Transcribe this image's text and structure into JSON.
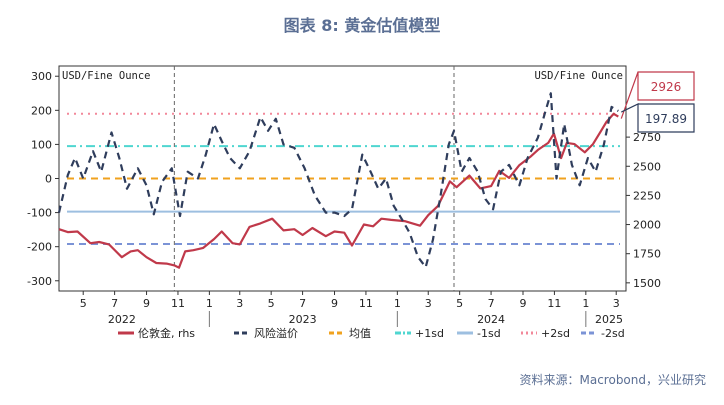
{
  "figure": {
    "title": "图表 8:   黄金估值模型",
    "source": "资料来源：Macrobond，兴业研究"
  },
  "chart_data": {
    "type": "line",
    "title": "图表 8:   黄金估值模型",
    "left_axis": {
      "unit_label": "USD/Fine Ounce",
      "ylim": [
        -330,
        330
      ],
      "ticks": [
        300,
        200,
        100,
        0,
        -100,
        -200,
        -300
      ]
    },
    "right_axis": {
      "unit_label": "USD/Fine Ounce",
      "ylim": [
        1430,
        3360
      ],
      "ticks": [
        2750,
        2500,
        2250,
        2000,
        1750,
        1500
      ]
    },
    "x_axis": {
      "month_ticks": [
        "5",
        "7",
        "9",
        "11",
        "1",
        "3",
        "5",
        "7",
        "9",
        "11",
        "1",
        "3",
        "5",
        "7",
        "9",
        "11",
        "1",
        "3"
      ],
      "year_labels": [
        "2022",
        "2023",
        "2024",
        "2025"
      ],
      "range": [
        "2022-03-15",
        "2025-03-20"
      ]
    },
    "vertical_markers": [
      "2022-10-25",
      "2024-04-20"
    ],
    "callouts": {
      "gold_last": "2926",
      "risk_last": "197.89"
    },
    "series": [
      {
        "name": "伦敦金, rhs",
        "axis": "right",
        "color": "#c0394a",
        "style": "solid",
        "points": [
          [
            "2022-03-15",
            1960
          ],
          [
            "2022-04-01",
            1935
          ],
          [
            "2022-04-20",
            1940
          ],
          [
            "2022-05-15",
            1840
          ],
          [
            "2022-06-01",
            1850
          ],
          [
            "2022-06-20",
            1830
          ],
          [
            "2022-07-15",
            1720
          ],
          [
            "2022-08-01",
            1770
          ],
          [
            "2022-08-15",
            1780
          ],
          [
            "2022-09-01",
            1720
          ],
          [
            "2022-09-20",
            1670
          ],
          [
            "2022-10-10",
            1665
          ],
          [
            "2022-10-25",
            1650
          ],
          [
            "2022-11-03",
            1630
          ],
          [
            "2022-11-15",
            1770
          ],
          [
            "2022-12-01",
            1780
          ],
          [
            "2022-12-20",
            1800
          ],
          [
            "2023-01-10",
            1875
          ],
          [
            "2023-01-25",
            1940
          ],
          [
            "2023-02-15",
            1840
          ],
          [
            "2023-03-01",
            1830
          ],
          [
            "2023-03-20",
            1980
          ],
          [
            "2023-04-10",
            2010
          ],
          [
            "2023-05-03",
            2050
          ],
          [
            "2023-05-25",
            1950
          ],
          [
            "2023-06-15",
            1960
          ],
          [
            "2023-07-01",
            1910
          ],
          [
            "2023-07-20",
            1970
          ],
          [
            "2023-08-15",
            1900
          ],
          [
            "2023-09-01",
            1940
          ],
          [
            "2023-09-20",
            1930
          ],
          [
            "2023-10-05",
            1820
          ],
          [
            "2023-10-28",
            2000
          ],
          [
            "2023-11-15",
            1985
          ],
          [
            "2023-12-01",
            2050
          ],
          [
            "2023-12-20",
            2040
          ],
          [
            "2024-01-15",
            2030
          ],
          [
            "2024-02-14",
            1990
          ],
          [
            "2024-03-01",
            2080
          ],
          [
            "2024-03-20",
            2160
          ],
          [
            "2024-04-12",
            2370
          ],
          [
            "2024-04-25",
            2320
          ],
          [
            "2024-05-20",
            2420
          ],
          [
            "2024-06-10",
            2310
          ],
          [
            "2024-07-01",
            2330
          ],
          [
            "2024-07-17",
            2460
          ],
          [
            "2024-08-05",
            2400
          ],
          [
            "2024-08-25",
            2510
          ],
          [
            "2024-09-15",
            2580
          ],
          [
            "2024-09-30",
            2640
          ],
          [
            "2024-10-20",
            2700
          ],
          [
            "2024-10-31",
            2780
          ],
          [
            "2024-11-14",
            2570
          ],
          [
            "2024-11-25",
            2700
          ],
          [
            "2024-12-10",
            2690
          ],
          [
            "2024-12-30",
            2620
          ],
          [
            "2025-01-15",
            2690
          ],
          [
            "2025-01-30",
            2800
          ],
          [
            "2025-02-10",
            2880
          ],
          [
            "2025-02-24",
            2950
          ],
          [
            "2025-03-05",
            2926
          ]
        ]
      },
      {
        "name": "风险溢价",
        "axis": "left",
        "color": "#2f3d5c",
        "style": "dashed",
        "points": [
          [
            "2022-03-15",
            -100
          ],
          [
            "2022-04-01",
            10
          ],
          [
            "2022-04-15",
            60
          ],
          [
            "2022-05-01",
            0
          ],
          [
            "2022-05-20",
            80
          ],
          [
            "2022-06-05",
            20
          ],
          [
            "2022-06-25",
            135
          ],
          [
            "2022-07-10",
            60
          ],
          [
            "2022-07-25",
            -30
          ],
          [
            "2022-08-15",
            30
          ],
          [
            "2022-09-01",
            -20
          ],
          [
            "2022-09-15",
            -105
          ],
          [
            "2022-10-01",
            -10
          ],
          [
            "2022-10-20",
            30
          ],
          [
            "2022-11-05",
            -110
          ],
          [
            "2022-11-20",
            20
          ],
          [
            "2022-12-10",
            0
          ],
          [
            "2022-12-25",
            70
          ],
          [
            "2023-01-10",
            160
          ],
          [
            "2023-01-25",
            110
          ],
          [
            "2023-02-10",
            60
          ],
          [
            "2023-03-01",
            30
          ],
          [
            "2023-03-20",
            80
          ],
          [
            "2023-04-10",
            180
          ],
          [
            "2023-04-25",
            140
          ],
          [
            "2023-05-10",
            175
          ],
          [
            "2023-05-25",
            100
          ],
          [
            "2023-06-15",
            90
          ],
          [
            "2023-07-05",
            30
          ],
          [
            "2023-07-25",
            -50
          ],
          [
            "2023-08-15",
            -100
          ],
          [
            "2023-09-01",
            -100
          ],
          [
            "2023-09-20",
            -110
          ],
          [
            "2023-10-05",
            -90
          ],
          [
            "2023-10-25",
            70
          ],
          [
            "2023-11-10",
            20
          ],
          [
            "2023-11-25",
            -30
          ],
          [
            "2023-12-10",
            0
          ],
          [
            "2023-12-25",
            -80
          ],
          [
            "2024-01-10",
            -120
          ],
          [
            "2024-01-25",
            -160
          ],
          [
            "2024-02-10",
            -230
          ],
          [
            "2024-02-25",
            -260
          ],
          [
            "2024-03-10",
            -180
          ],
          [
            "2024-03-25",
            -50
          ],
          [
            "2024-04-10",
            100
          ],
          [
            "2024-04-20",
            140
          ],
          [
            "2024-05-05",
            20
          ],
          [
            "2024-05-20",
            60
          ],
          [
            "2024-06-05",
            20
          ],
          [
            "2024-06-20",
            -60
          ],
          [
            "2024-07-05",
            -90
          ],
          [
            "2024-07-20",
            20
          ],
          [
            "2024-08-05",
            40
          ],
          [
            "2024-08-25",
            -20
          ],
          [
            "2024-09-10",
            60
          ],
          [
            "2024-09-30",
            120
          ],
          [
            "2024-10-15",
            200
          ],
          [
            "2024-10-25",
            250
          ],
          [
            "2024-11-05",
            0
          ],
          [
            "2024-11-20",
            160
          ],
          [
            "2024-12-05",
            40
          ],
          [
            "2024-12-20",
            -20
          ],
          [
            "2025-01-05",
            60
          ],
          [
            "2025-01-20",
            20
          ],
          [
            "2025-02-05",
            100
          ],
          [
            "2025-02-20",
            210
          ],
          [
            "2025-03-05",
            197.89
          ]
        ]
      },
      {
        "name": "均值",
        "axis": "left",
        "color": "#f0a21e",
        "style": "dashed",
        "value": 0
      },
      {
        "name": "+1sd",
        "axis": "left",
        "color": "#4fd6d0",
        "style": "dashdot",
        "value": 95
      },
      {
        "name": "-1sd",
        "axis": "left",
        "color": "#9dbfe0",
        "style": "solid",
        "value": -97
      },
      {
        "name": "+2sd",
        "axis": "left",
        "color": "#f2889a",
        "style": "dotted",
        "value": 190
      },
      {
        "name": "-2sd",
        "axis": "left",
        "color": "#7b93d6",
        "style": "dashed",
        "value": -192
      }
    ],
    "legend_position": "bottom"
  }
}
